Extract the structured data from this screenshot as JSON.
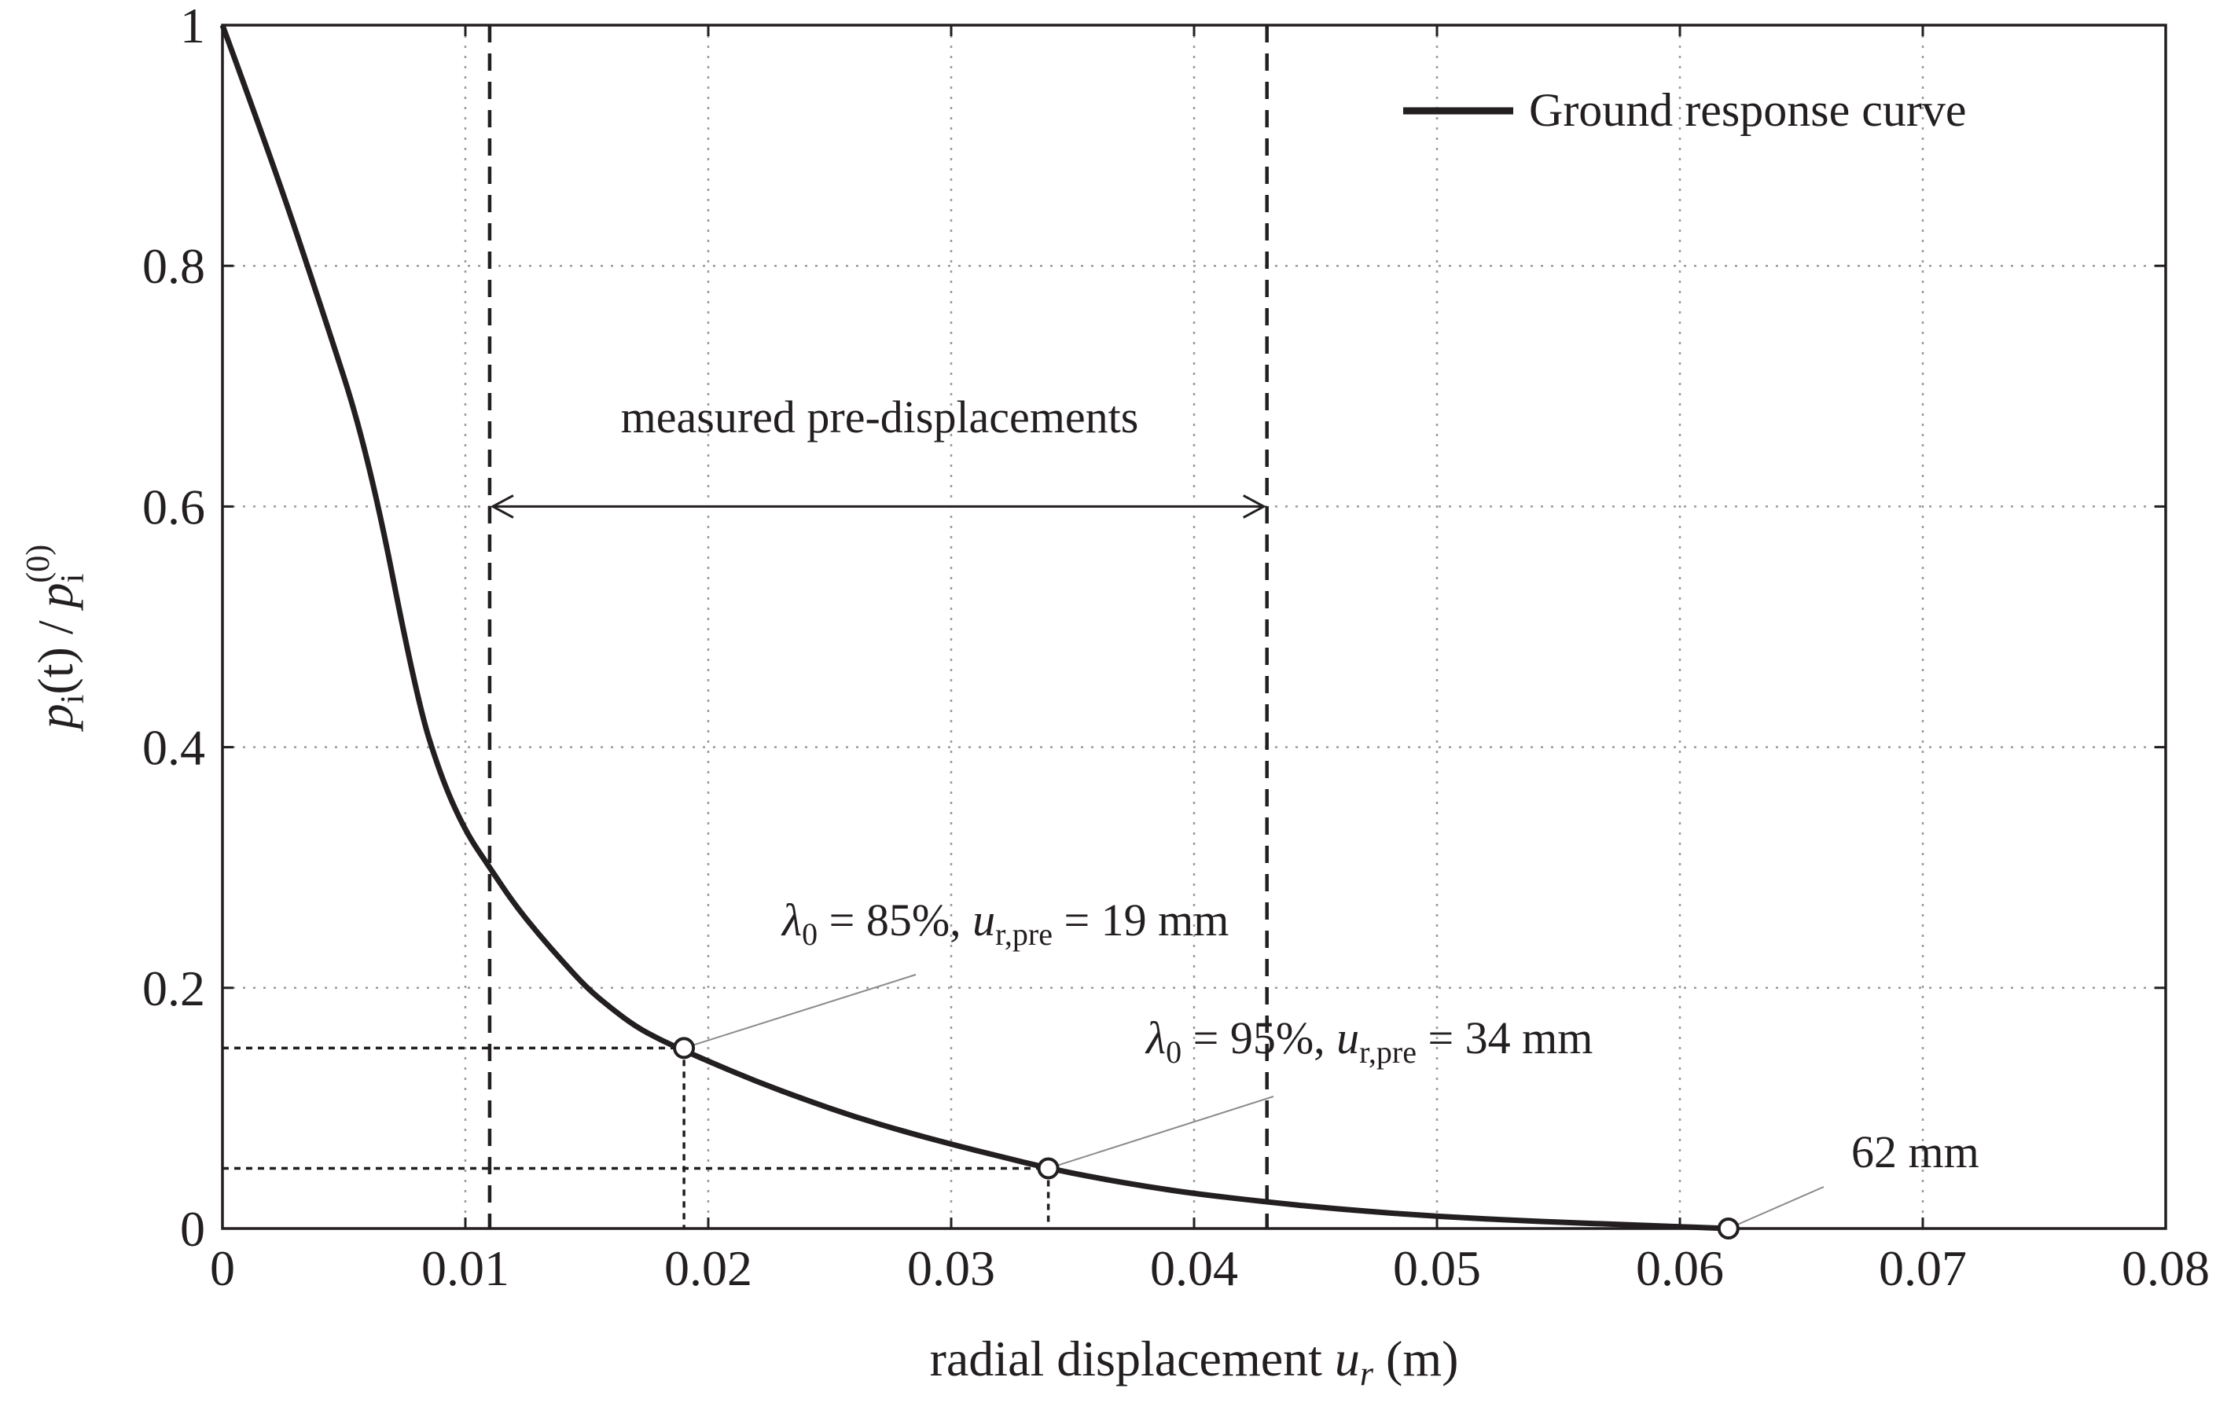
{
  "chart_data": {
    "type": "line",
    "title": "",
    "xlabel_prefix": "radial displacement ",
    "xlabel_var": "u",
    "xlabel_sub": "r",
    "xlabel_unit": " (m)",
    "ylabel": "pi(t) / pi(0)",
    "ylabel_parts": {
      "p1": "p",
      "sub1": "i",
      "mid": "(t) / ",
      "p2": "p",
      "sub2": "i",
      "sup2": "(0)"
    },
    "xlim": [
      0,
      0.08
    ],
    "ylim": [
      0,
      1
    ],
    "x_ticks": [
      0,
      0.01,
      0.02,
      0.03,
      0.04,
      0.05,
      0.06,
      0.07,
      0.08
    ],
    "x_tick_labels": [
      "0",
      "0.01",
      "0.02",
      "0.03",
      "0.04",
      "0.05",
      "0.06",
      "0.07",
      "0.08"
    ],
    "y_ticks": [
      0,
      0.2,
      0.4,
      0.6,
      0.8,
      1
    ],
    "y_tick_labels": [
      "0",
      "0.2",
      "0.4",
      "0.6",
      "0.8",
      "1"
    ],
    "grid": true,
    "legend_position": "top-right",
    "series": [
      {
        "name": "Ground response curve",
        "x": [
          0,
          0.002,
          0.004,
          0.006,
          0.008,
          0.009,
          0.01,
          0.011,
          0.012,
          0.013,
          0.014,
          0.015,
          0.016,
          0.017,
          0.018,
          0.019,
          0.02,
          0.022,
          0.024,
          0.026,
          0.028,
          0.03,
          0.032,
          0.034,
          0.036,
          0.038,
          0.04,
          0.043,
          0.046,
          0.05,
          0.054,
          0.058,
          0.062
        ],
        "y": [
          1,
          0.89,
          0.77,
          0.645,
          0.44,
          0.375,
          0.33,
          0.3,
          0.27,
          0.245,
          0.222,
          0.2,
          0.183,
          0.168,
          0.157,
          0.148,
          0.139,
          0.122,
          0.107,
          0.093,
          0.081,
          0.07,
          0.06,
          0.05,
          0.042,
          0.035,
          0.029,
          0.022,
          0.016,
          0.01,
          0.006,
          0.003,
          0
        ]
      }
    ],
    "vertical_lines": [
      0.011,
      0.043
    ],
    "span_label": "measured pre-displacements",
    "span_y": 0.6,
    "markers": [
      {
        "x": 0.019,
        "y": 0.15,
        "label_prefix": "λ",
        "label_sub": "0",
        "label_mid": " = 85%, ",
        "label_var": "u",
        "label_var_sub": "r,pre",
        "label_end": " = 19 mm"
      },
      {
        "x": 0.034,
        "y": 0.05,
        "label_prefix": "λ",
        "label_sub": "0",
        "label_mid": " = 95%, ",
        "label_var": "u",
        "label_var_sub": "r,pre",
        "label_end": " = 34 mm"
      },
      {
        "x": 0.062,
        "y": 0,
        "label_end": "62 mm"
      }
    ],
    "colors": {
      "curve": "#231f20",
      "grid": "#9a9a9a",
      "frame": "#231f20",
      "leader": "#8a8a8a"
    }
  }
}
